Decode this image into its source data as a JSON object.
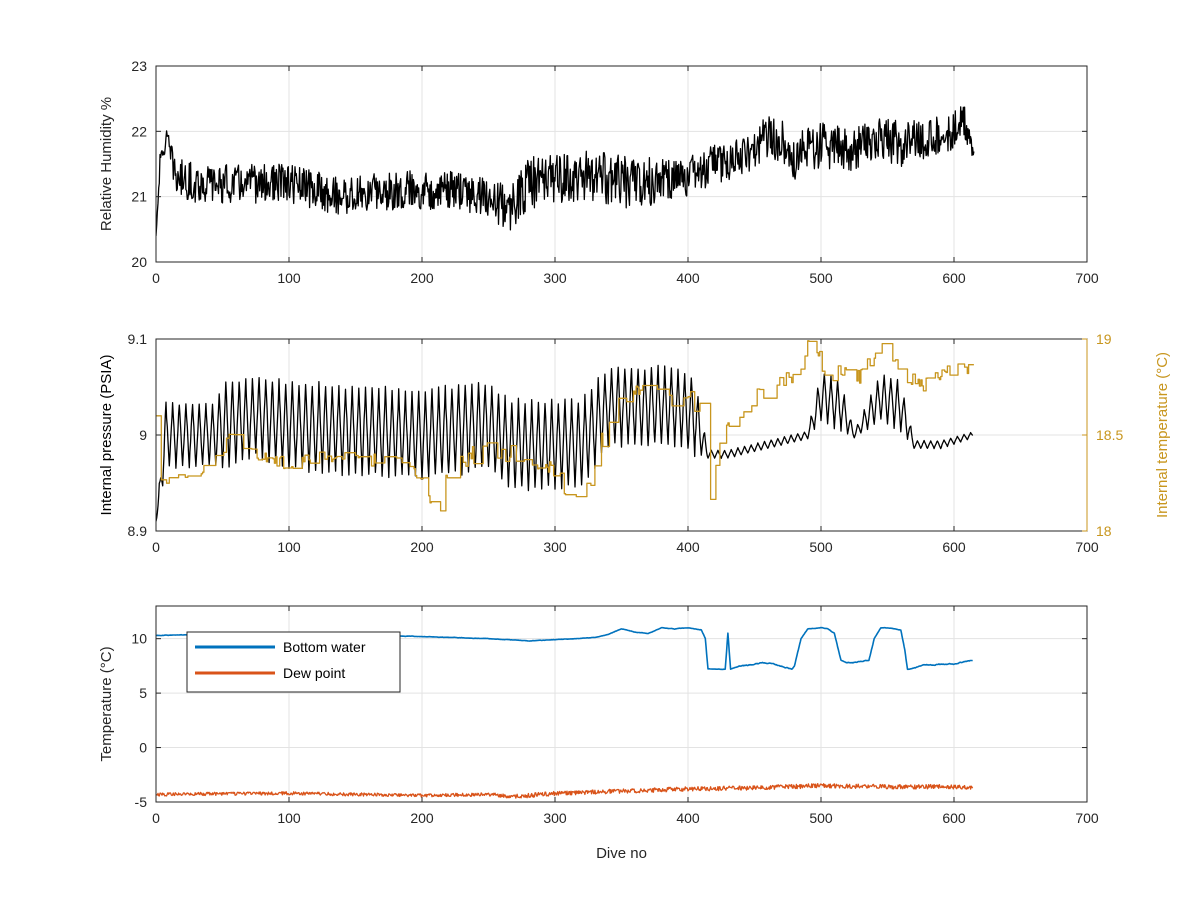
{
  "chart_data": [
    {
      "type": "line",
      "xlabel": "",
      "ylabel": "Relative Humidity %",
      "xlim": [
        0,
        700
      ],
      "ylim": [
        20,
        23
      ],
      "xticks": [
        0,
        100,
        200,
        300,
        400,
        500,
        600,
        700
      ],
      "yticks": [
        20,
        21,
        22,
        23
      ],
      "xtick_labels": [
        "0",
        "100",
        "200",
        "300",
        "400",
        "500",
        "600",
        "700"
      ],
      "ytick_labels": [
        "20",
        "21",
        "22",
        "23"
      ],
      "grid": true,
      "series": [
        {
          "color": "#000000",
          "style": "noisy",
          "x": [
            0,
            3,
            8,
            15,
            30,
            60,
            100,
            140,
            180,
            220,
            250,
            265,
            280,
            300,
            330,
            360,
            400,
            420,
            440,
            460,
            470,
            480,
            500,
            520,
            540,
            560,
            580,
            600,
            608,
            615
          ],
          "y": [
            20.4,
            21.5,
            21.9,
            21.3,
            21.2,
            21.2,
            21.2,
            21.0,
            21.1,
            21.1,
            21.0,
            20.8,
            21.2,
            21.3,
            21.3,
            21.2,
            21.3,
            21.5,
            21.6,
            21.9,
            21.9,
            21.6,
            21.8,
            21.7,
            21.9,
            21.8,
            21.9,
            22.0,
            22.2,
            21.6
          ],
          "amplitude": [
            0,
            0.15,
            0.15,
            0.3,
            0.3,
            0.3,
            0.3,
            0.3,
            0.3,
            0.3,
            0.3,
            0.35,
            0.4,
            0.4,
            0.4,
            0.4,
            0.3,
            0.3,
            0.3,
            0.35,
            0.35,
            0.35,
            0.35,
            0.35,
            0.35,
            0.35,
            0.3,
            0.3,
            0.3,
            0.1
          ]
        }
      ]
    },
    {
      "type": "line",
      "xlabel": "",
      "ylabel": "Internal pressure (PSIA)",
      "ylabel_right": "Internal temperature (°C)",
      "xlim": [
        0,
        700
      ],
      "ylim": [
        8.9,
        9.1
      ],
      "ylim_right": [
        18,
        19
      ],
      "xticks": [
        0,
        100,
        200,
        300,
        400,
        500,
        600,
        700
      ],
      "yticks": [
        8.9,
        9,
        9.1
      ],
      "yticks_right": [
        18,
        18.5,
        19
      ],
      "xtick_labels": [
        "0",
        "100",
        "200",
        "300",
        "400",
        "500",
        "600",
        "700"
      ],
      "ytick_labels": [
        "8.9",
        "9",
        "9.1"
      ],
      "ytick_labels_right": [
        "18",
        "18.5",
        "19"
      ],
      "right_axis_color": "#C8961E",
      "grid": true,
      "series": [
        {
          "axis": "left",
          "color": "#000000",
          "style": "oscillating",
          "x": [
            0,
            2,
            7,
            45,
            50,
            75,
            100,
            200,
            250,
            265,
            300,
            320,
            340,
            390,
            405,
            415,
            430,
            460,
            490,
            500,
            515,
            525,
            545,
            560,
            570,
            590,
            614
          ],
          "y": [
            8.91,
            8.93,
            9.0,
            9.0,
            9.01,
            9.02,
            9.01,
            9.0,
            9.01,
            8.99,
            8.99,
            8.99,
            9.03,
            9.03,
            9.02,
            8.98,
            8.98,
            8.99,
            9.0,
            9.04,
            9.03,
            9.0,
            9.04,
            9.03,
            8.99,
            8.99,
            9.0
          ],
          "amplitude": [
            0,
            0.01,
            0.033,
            0.033,
            0.045,
            0.04,
            0.045,
            0.045,
            0.045,
            0.045,
            0.045,
            0.045,
            0.04,
            0.04,
            0.04,
            0.004,
            0.004,
            0.004,
            0.004,
            0.025,
            0.025,
            0.003,
            0.025,
            0.025,
            0.004,
            0.004,
            0.003
          ]
        },
        {
          "axis": "right",
          "color": "#C8961E",
          "style": "stepped",
          "x": [
            0,
            2,
            5,
            10,
            20,
            30,
            45,
            55,
            65,
            80,
            100,
            120,
            140,
            160,
            180,
            200,
            212,
            220,
            240,
            260,
            270,
            285,
            300,
            315,
            330,
            340,
            350,
            360,
            380,
            400,
            410,
            415,
            425,
            440,
            460,
            470,
            480,
            490,
            500,
            510,
            520,
            530,
            545,
            555,
            565,
            575,
            590,
            600,
            614
          ],
          "y": [
            18.6,
            18.3,
            18.2,
            18.25,
            18.3,
            18.3,
            18.35,
            18.5,
            18.4,
            18.4,
            18.35,
            18.38,
            18.4,
            18.38,
            18.35,
            18.3,
            18.0,
            18.35,
            18.4,
            18.42,
            18.4,
            18.35,
            18.3,
            18.15,
            18.3,
            18.6,
            18.7,
            18.72,
            18.7,
            18.7,
            18.6,
            18.1,
            18.5,
            18.6,
            18.75,
            18.8,
            18.8,
            18.95,
            18.88,
            18.8,
            18.85,
            18.8,
            18.95,
            18.85,
            18.8,
            18.75,
            18.8,
            18.85,
            18.85
          ],
          "amplitude": [
            0,
            0.05,
            0.05,
            0.05,
            0.04,
            0.04,
            0.05,
            0.06,
            0.04,
            0.04,
            0.04,
            0.04,
            0.04,
            0.04,
            0.04,
            0.04,
            0.02,
            0.05,
            0.05,
            0.06,
            0.05,
            0.05,
            0.05,
            0.05,
            0.06,
            0.06,
            0.05,
            0.05,
            0.05,
            0.05,
            0.06,
            0.02,
            0.06,
            0.06,
            0.06,
            0.05,
            0.05,
            0.05,
            0.05,
            0.05,
            0.05,
            0.05,
            0.05,
            0.05,
            0.05,
            0.05,
            0.04,
            0.03,
            0.03
          ]
        }
      ]
    },
    {
      "type": "line",
      "xlabel": "Dive no",
      "ylabel": "Temperature (°C)",
      "xlim": [
        0,
        700
      ],
      "ylim": [
        -5,
        13
      ],
      "xticks": [
        0,
        100,
        200,
        300,
        400,
        500,
        600,
        700
      ],
      "yticks": [
        -5,
        0,
        5,
        10
      ],
      "xtick_labels": [
        "0",
        "100",
        "200",
        "300",
        "400",
        "500",
        "600",
        "700"
      ],
      "ytick_labels": [
        "-5",
        "0",
        "5",
        "10"
      ],
      "grid": true,
      "legend": "top-left",
      "series": [
        {
          "name": "Bottom water",
          "color": "#0072BD",
          "style": "smooth",
          "x": [
            0,
            50,
            100,
            150,
            200,
            250,
            280,
            300,
            330,
            340,
            350,
            360,
            370,
            380,
            390,
            400,
            410,
            413,
            415,
            428,
            430,
            432,
            434,
            440,
            460,
            470,
            478,
            480,
            485,
            490,
            500,
            505,
            510,
            515,
            520,
            530,
            536,
            540,
            545,
            550,
            560,
            563,
            565,
            580,
            600,
            614
          ],
          "y": [
            10.3,
            10.4,
            10.5,
            10.3,
            10.2,
            10.0,
            9.8,
            9.9,
            10.1,
            10.4,
            10.9,
            10.6,
            10.5,
            11.0,
            10.9,
            11.0,
            10.8,
            10.0,
            7.2,
            7.2,
            10.5,
            7.2,
            7.3,
            7.5,
            7.8,
            7.5,
            7.2,
            7.5,
            10.0,
            10.9,
            11.0,
            10.9,
            10.5,
            8.0,
            7.8,
            7.9,
            8.0,
            10.0,
            11.0,
            11.0,
            10.8,
            9.0,
            7.2,
            7.6,
            7.7,
            8.0
          ],
          "amplitude": [
            0.05,
            0.05,
            0.05,
            0.05,
            0.05,
            0.05,
            0.05,
            0.05,
            0.05,
            0.05,
            0.05,
            0.05,
            0.05,
            0.05,
            0.05,
            0.05,
            0.05,
            0.05,
            0.05,
            0.05,
            0,
            0.05,
            0.1,
            0.15,
            0.15,
            0.15,
            0.15,
            0.1,
            0.05,
            0.05,
            0.05,
            0.05,
            0.05,
            0.1,
            0.15,
            0.15,
            0.1,
            0.05,
            0.05,
            0.05,
            0.05,
            0.05,
            0.1,
            0.15,
            0.15,
            0.1
          ]
        },
        {
          "name": "Dew point",
          "color": "#D95319",
          "style": "noisy",
          "x": [
            0,
            100,
            200,
            250,
            270,
            300,
            350,
            400,
            450,
            500,
            550,
            600,
            614
          ],
          "y": [
            -4.3,
            -4.2,
            -4.4,
            -4.3,
            -4.5,
            -4.2,
            -4.0,
            -3.8,
            -3.7,
            -3.5,
            -3.6,
            -3.6,
            -3.7
          ],
          "amplitude": [
            0.15,
            0.15,
            0.15,
            0.15,
            0.2,
            0.2,
            0.2,
            0.2,
            0.2,
            0.2,
            0.2,
            0.2,
            0.15
          ]
        }
      ]
    }
  ]
}
